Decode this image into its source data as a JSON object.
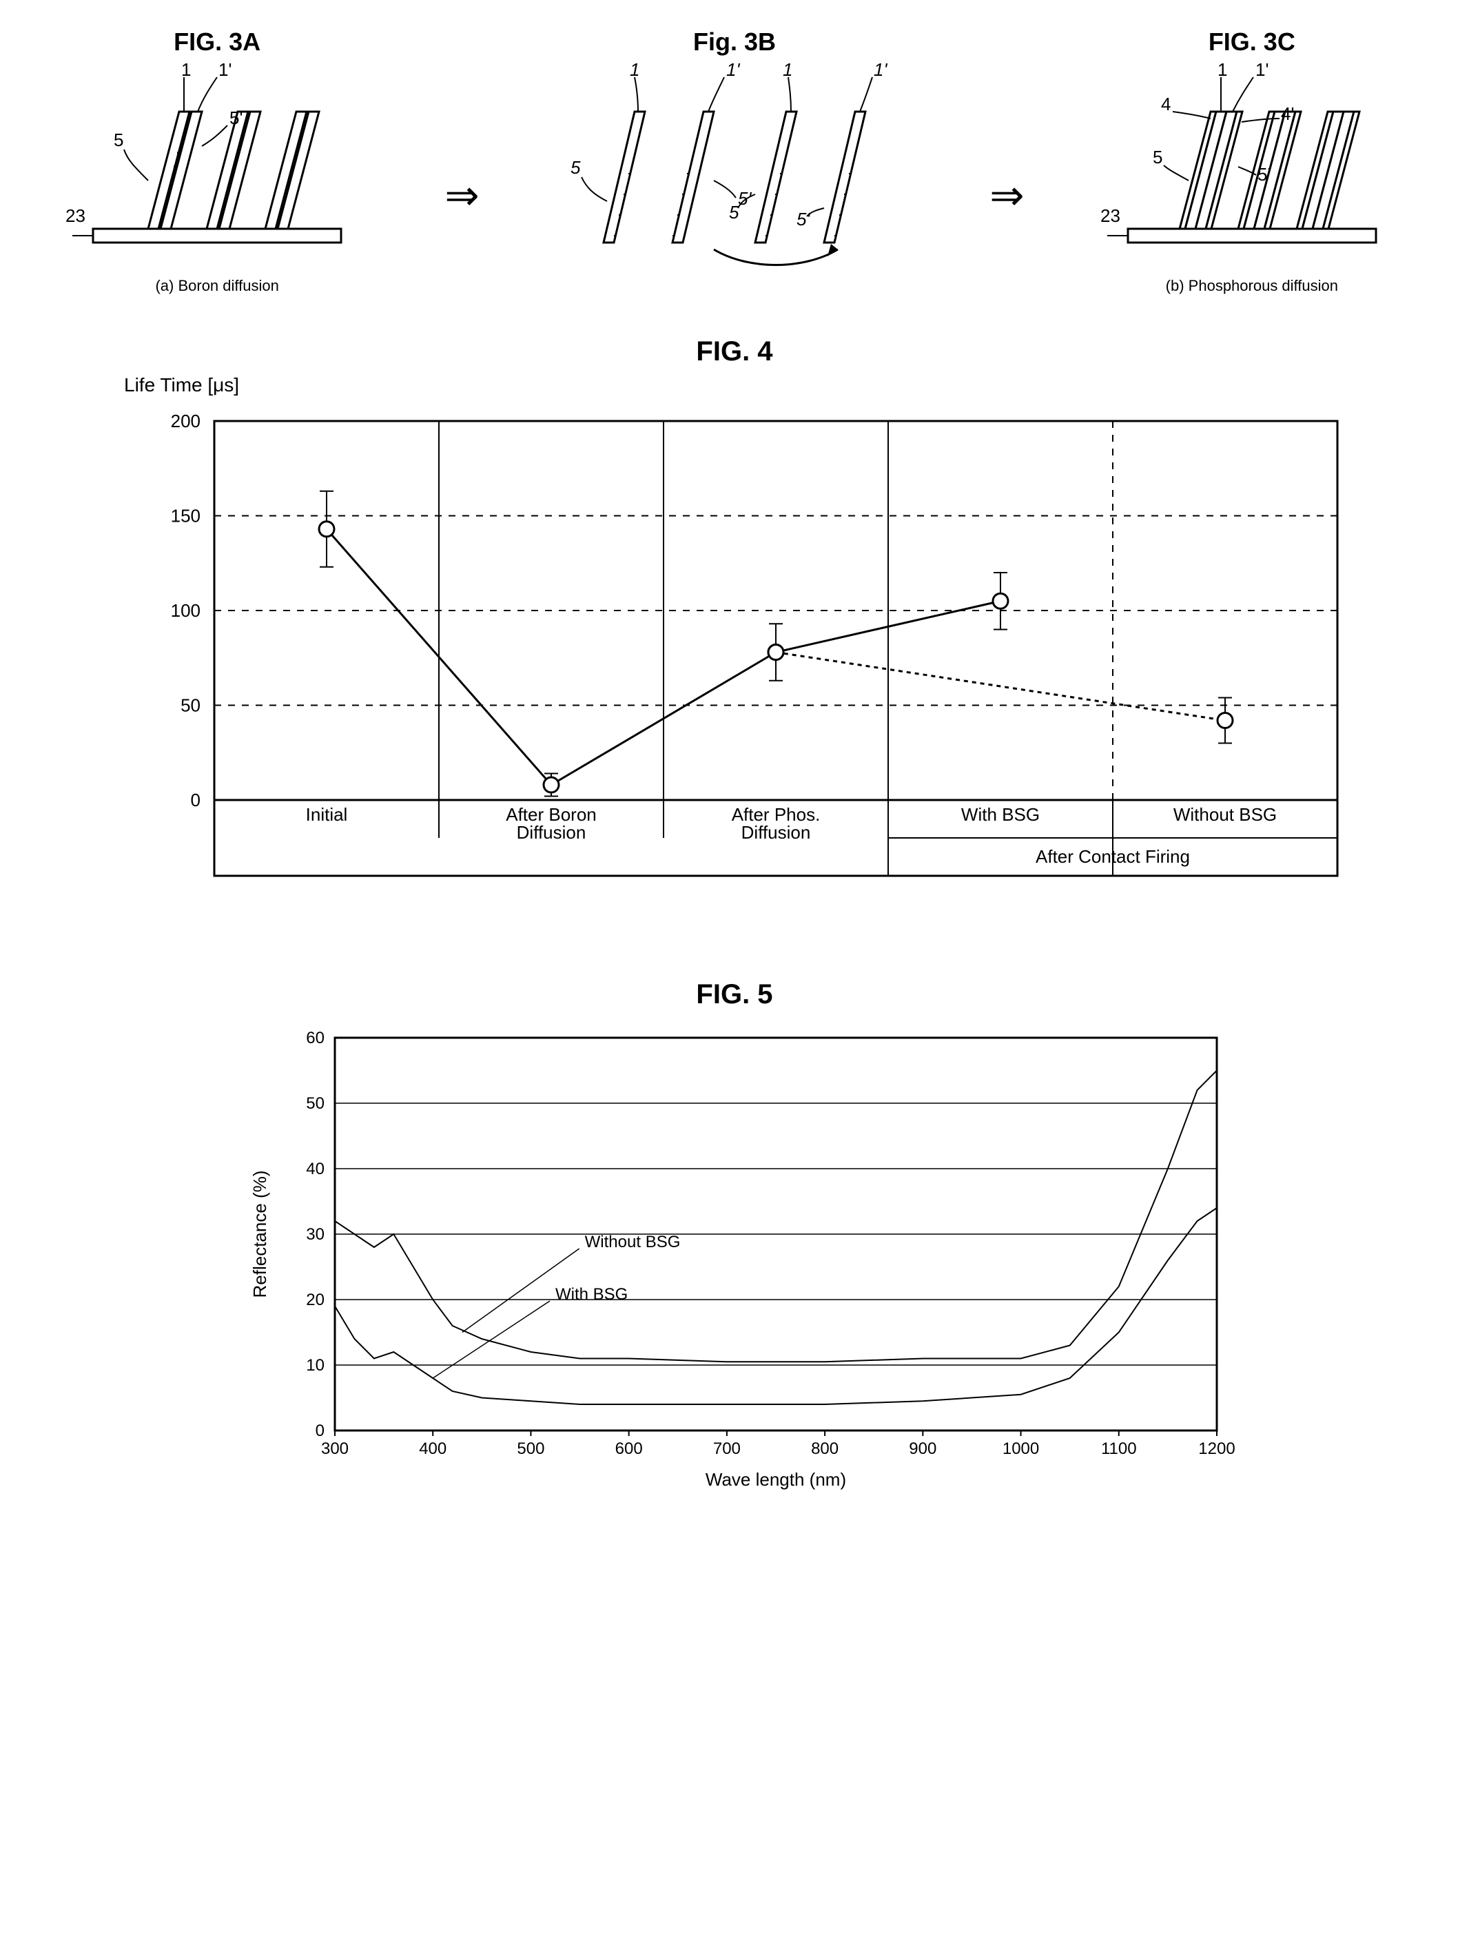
{
  "fig3": {
    "a": {
      "title": "FIG. 3A",
      "caption": "(a) Boron diffusion",
      "labels": {
        "l1": "1",
        "l1p": "1'",
        "l5": "5",
        "l5p": "5'",
        "l23": "23"
      }
    },
    "b": {
      "title": "Fig. 3B",
      "labels": {
        "l1": "1",
        "l1p": "1'",
        "l5": "5",
        "l5p": "5'",
        "l1b": "1",
        "l1pb": "1'"
      }
    },
    "c": {
      "title": "FIG. 3C",
      "caption": "(b) Phosphorous diffusion",
      "labels": {
        "l1": "1",
        "l1p": "1'",
        "l4": "4",
        "l4p": "4'",
        "l5": "5",
        "l5p": "5'",
        "l23": "23"
      }
    }
  },
  "fig4": {
    "title": "FIG. 4",
    "ylabel": "Life Time [μs]",
    "ylim": [
      0,
      200
    ],
    "yticks": [
      0,
      50,
      100,
      150,
      200
    ],
    "categories": [
      "Initial",
      "After Boron\nDiffusion",
      "After Phos.\nDiffusion",
      "With BSG",
      "Without BSG"
    ],
    "footer_span": "After Contact Firing",
    "series_solid": {
      "x": [
        0.5,
        1.5,
        2.5,
        3.5
      ],
      "y": [
        143,
        8,
        78,
        105
      ],
      "err": [
        20,
        6,
        15,
        15
      ],
      "color": "#000000",
      "marker": "circle"
    },
    "series_dashed": {
      "x": [
        2.5,
        4.5
      ],
      "y": [
        78,
        42
      ],
      "err": [
        0,
        12
      ],
      "color": "#000000",
      "marker": "circle",
      "dash": "6,6"
    },
    "grid_color": "#000000",
    "background": "#ffffff",
    "font_size_labels": 26
  },
  "fig5": {
    "title": "FIG. 5",
    "xlabel": "Wave length (nm)",
    "ylabel": "Reflectance (%)",
    "xlim": [
      300,
      1200
    ],
    "ylim": [
      0,
      60
    ],
    "xticks": [
      300,
      400,
      500,
      600,
      700,
      800,
      900,
      1000,
      1100,
      1200
    ],
    "yticks": [
      0,
      10,
      20,
      30,
      40,
      50,
      60
    ],
    "grid_color": "#000000",
    "line_color": "#000000",
    "line_width": 2,
    "label_without": "Without BSG",
    "label_with": "With BSG",
    "series_without": [
      [
        300,
        32
      ],
      [
        320,
        30
      ],
      [
        340,
        28
      ],
      [
        360,
        30
      ],
      [
        380,
        25
      ],
      [
        400,
        20
      ],
      [
        420,
        16
      ],
      [
        450,
        14
      ],
      [
        500,
        12
      ],
      [
        550,
        11
      ],
      [
        600,
        11
      ],
      [
        700,
        10.5
      ],
      [
        800,
        10.5
      ],
      [
        900,
        11
      ],
      [
        1000,
        11
      ],
      [
        1050,
        13
      ],
      [
        1100,
        22
      ],
      [
        1150,
        40
      ],
      [
        1180,
        52
      ],
      [
        1200,
        55
      ]
    ],
    "series_with": [
      [
        300,
        19
      ],
      [
        320,
        14
      ],
      [
        340,
        11
      ],
      [
        360,
        12
      ],
      [
        380,
        10
      ],
      [
        400,
        8
      ],
      [
        420,
        6
      ],
      [
        450,
        5
      ],
      [
        500,
        4.5
      ],
      [
        550,
        4
      ],
      [
        600,
        4
      ],
      [
        700,
        4
      ],
      [
        800,
        4
      ],
      [
        900,
        4.5
      ],
      [
        1000,
        5.5
      ],
      [
        1050,
        8
      ],
      [
        1100,
        15
      ],
      [
        1150,
        26
      ],
      [
        1180,
        32
      ],
      [
        1200,
        34
      ]
    ]
  }
}
